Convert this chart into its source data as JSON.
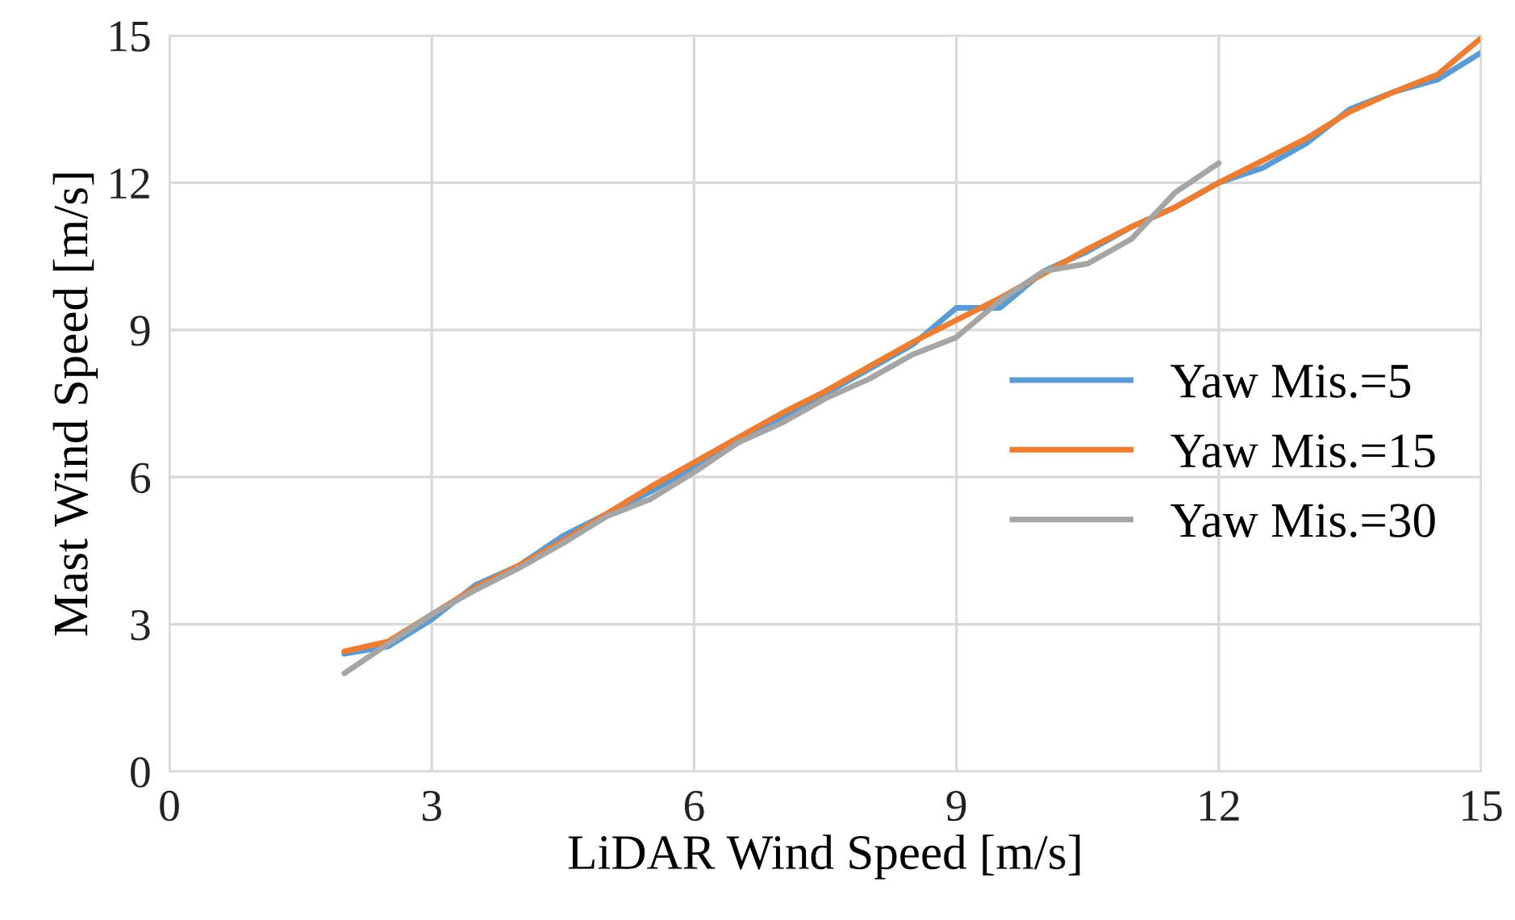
{
  "chart_data": {
    "type": "line",
    "xlabel": "LiDAR Wind Speed [m/s]",
    "ylabel": "Mast Wind Speed [m/s]",
    "xlim": [
      0,
      15
    ],
    "xticks": [
      0,
      3,
      6,
      9,
      12,
      15
    ],
    "ylim": [
      0,
      15
    ],
    "yticks": [
      0,
      3,
      6,
      9,
      12,
      15
    ],
    "grid": true,
    "legend": "right",
    "marker": "none",
    "line_style": "solid",
    "series": [
      {
        "name": "Yaw Mis.=5",
        "color": "#5b9bd5",
        "x": [
          2,
          2.5,
          3,
          3.5,
          4,
          4.5,
          5,
          5.5,
          6,
          6.5,
          7,
          7.5,
          8,
          8.5,
          9,
          9.5,
          10,
          10.5,
          11,
          11.5,
          12,
          12.5,
          13,
          13.5,
          14,
          14.5,
          15
        ],
        "values": [
          2.4,
          2.55,
          3.1,
          3.8,
          4.2,
          4.8,
          5.25,
          5.7,
          6.2,
          6.7,
          7.2,
          7.7,
          8.2,
          8.7,
          9.45,
          9.45,
          10.2,
          10.6,
          11.1,
          11.5,
          12.0,
          12.3,
          12.8,
          13.5,
          13.85,
          14.1,
          14.65
        ]
      },
      {
        "name": "Yaw Mis.=15",
        "color": "#ed7d31",
        "x": [
          2,
          2.5,
          3,
          3.5,
          4,
          4.5,
          5,
          5.5,
          6,
          6.5,
          7,
          7.5,
          8,
          8.5,
          9,
          9.5,
          10,
          10.5,
          11,
          11.5,
          12,
          12.5,
          13,
          13.5,
          14,
          14.5,
          15
        ],
        "values": [
          2.45,
          2.65,
          3.2,
          3.75,
          4.2,
          4.7,
          5.25,
          5.8,
          6.3,
          6.8,
          7.3,
          7.75,
          8.25,
          8.75,
          9.2,
          9.65,
          10.15,
          10.65,
          11.1,
          11.5,
          12.0,
          12.45,
          12.9,
          13.45,
          13.85,
          14.2,
          14.95
        ]
      },
      {
        "name": "Yaw Mis.=30",
        "color": "#a5a5a5",
        "x": [
          2,
          2.5,
          3,
          3.5,
          4,
          4.5,
          5,
          5.5,
          6,
          6.5,
          7,
          7.5,
          8,
          8.5,
          9,
          9.5,
          10,
          10.5,
          11,
          11.5,
          12
        ],
        "values": [
          2.0,
          2.6,
          3.2,
          3.7,
          4.15,
          4.65,
          5.2,
          5.55,
          6.1,
          6.7,
          7.1,
          7.6,
          8.0,
          8.5,
          8.85,
          9.6,
          10.2,
          10.35,
          10.85,
          11.8,
          12.4
        ]
      }
    ]
  }
}
